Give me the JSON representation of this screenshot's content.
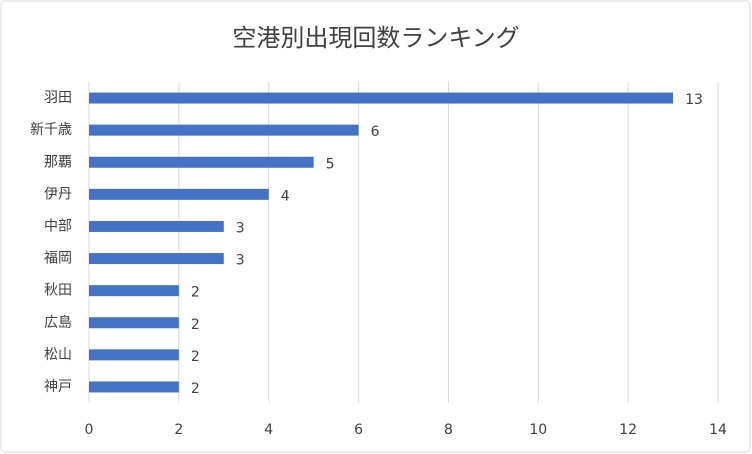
{
  "chart_data": {
    "type": "bar",
    "horizontal": true,
    "title": "空港別出現回数ランキング",
    "categories": [
      "羽田",
      "新千歳",
      "那覇",
      "伊丹",
      "中部",
      "福岡",
      "秋田",
      "広島",
      "松山",
      "神戸"
    ],
    "values": [
      13,
      6,
      5,
      4,
      3,
      3,
      2,
      2,
      2,
      2
    ],
    "color": "#4472c4",
    "xlim": [
      0,
      14
    ],
    "xticks": [
      0,
      2,
      4,
      6,
      8,
      10,
      12,
      14
    ],
    "grid": true,
    "data_labels": true
  }
}
